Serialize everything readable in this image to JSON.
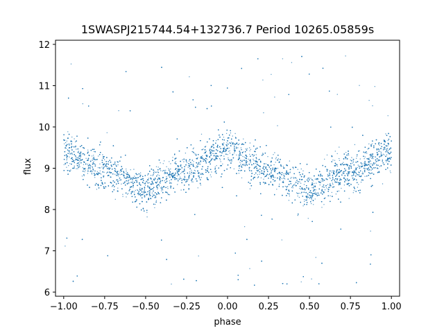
{
  "chart_data": {
    "type": "scatter",
    "title": "1SWASPJ215744.54+132736.7 Period 10265.05859s",
    "xlabel": "phase",
    "ylabel": "flux",
    "xlim": [
      -1.05,
      1.05
    ],
    "ylim": [
      5.9,
      12.1
    ],
    "xticks": [
      -1.0,
      -0.75,
      -0.5,
      -0.25,
      0.0,
      0.25,
      0.5,
      0.75,
      1.0
    ],
    "xtick_labels": [
      "−1.00",
      "−0.75",
      "−0.50",
      "−0.25",
      "0.00",
      "0.25",
      "0.50",
      "0.75",
      "1.00"
    ],
    "yticks": [
      6,
      7,
      8,
      9,
      10,
      11,
      12
    ],
    "ytick_labels": [
      "6",
      "7",
      "8",
      "9",
      "10",
      "11",
      "12"
    ],
    "grid": false,
    "legend": "none",
    "point_color": "#1f77b4",
    "series_model": {
      "description_points": "phase-folded light curve, dense band following sinusoid",
      "x_range": [
        -1.0,
        1.0
      ],
      "curve": [
        {
          "phase": -1.0,
          "flux": 9.4
        },
        {
          "phase": -0.75,
          "flux": 8.95
        },
        {
          "phase": -0.5,
          "flux": 8.5
        },
        {
          "phase": -0.25,
          "flux": 8.95
        },
        {
          "phase": 0.0,
          "flux": 9.45
        },
        {
          "phase": 0.25,
          "flux": 8.95
        },
        {
          "phase": 0.5,
          "flux": 8.5
        },
        {
          "phase": 0.75,
          "flux": 8.95
        },
        {
          "phase": 1.0,
          "flux": 9.4
        }
      ],
      "band_half_width": 0.6,
      "outlier_range": [
        6.1,
        11.8
      ]
    }
  }
}
